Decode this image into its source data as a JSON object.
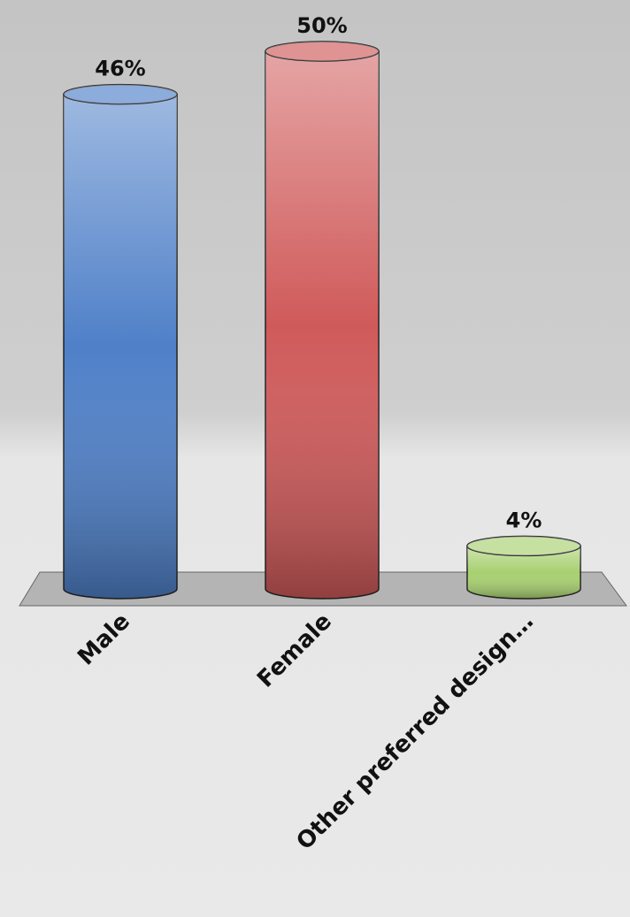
{
  "chart_data": {
    "type": "cylinder-bar",
    "categories": [
      "Male",
      "Female",
      "Other preferred design…"
    ],
    "values": [
      46,
      50,
      4
    ],
    "value_labels": [
      "46%",
      "50%",
      "4%"
    ],
    "colors": [
      "#4f80c8",
      "#d05a5a",
      "#a8d070"
    ]
  }
}
